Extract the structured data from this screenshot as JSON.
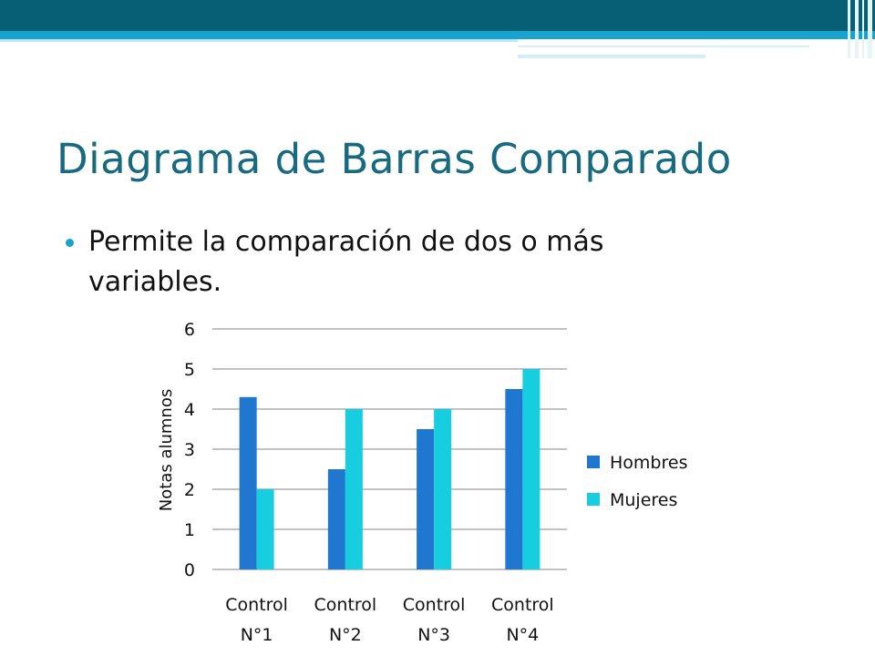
{
  "slide": {
    "title": "Diagrama de Barras Comparado",
    "bullet": "Permite la comparación de dos o más variables."
  },
  "colors": {
    "header": "#075f76",
    "accent": "#17a2cf",
    "title": "#176a80",
    "hombres": "#1f77cf",
    "mujeres": "#17cde0"
  },
  "chart_data": {
    "type": "bar",
    "categories": [
      [
        "Control",
        "N°1"
      ],
      [
        "Control",
        "N°2"
      ],
      [
        "Control",
        "N°3"
      ],
      [
        "Control",
        "N°4"
      ]
    ],
    "series": [
      {
        "name": "Hombres",
        "values": [
          4.3,
          2.5,
          3.5,
          4.5
        ]
      },
      {
        "name": "Mujeres",
        "values": [
          2,
          4,
          4,
          5
        ]
      }
    ],
    "ylabel": "Notas alumnos",
    "xlabel": "",
    "ylim": [
      0,
      6
    ],
    "yticks": [
      0,
      1,
      2,
      3,
      4,
      5,
      6
    ],
    "grid": true,
    "legend": "right"
  }
}
